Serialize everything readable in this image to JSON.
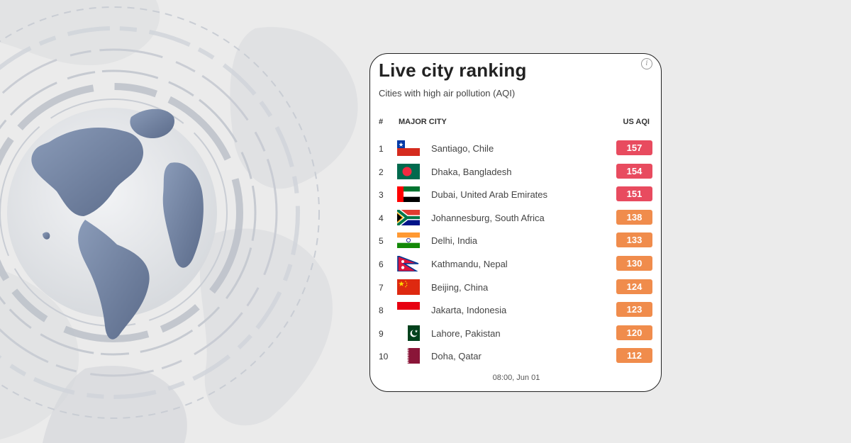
{
  "card": {
    "title": "Live city ranking",
    "subtitle": "Cities with high air pollution (AQI)",
    "info_icon": "info-icon",
    "columns": {
      "rank": "#",
      "city": "MAJOR CITY",
      "aqi": "US AQI"
    },
    "timestamp": "08:00, Jun 01"
  },
  "colors": {
    "aqi_unhealthy": "#e84b5f",
    "aqi_sensitive": "#f08c4c"
  },
  "rows": [
    {
      "rank": "1",
      "city": "Santiago, Chile",
      "aqi": "157",
      "level": "red",
      "flag": "chile"
    },
    {
      "rank": "2",
      "city": "Dhaka, Bangladesh",
      "aqi": "154",
      "level": "red",
      "flag": "bangladesh"
    },
    {
      "rank": "3",
      "city": "Dubai, United Arab Emirates",
      "aqi": "151",
      "level": "red",
      "flag": "uae"
    },
    {
      "rank": "4",
      "city": "Johannesburg, South Africa",
      "aqi": "138",
      "level": "orange",
      "flag": "south-africa"
    },
    {
      "rank": "5",
      "city": "Delhi, India",
      "aqi": "133",
      "level": "orange",
      "flag": "india"
    },
    {
      "rank": "6",
      "city": "Kathmandu, Nepal",
      "aqi": "130",
      "level": "orange",
      "flag": "nepal"
    },
    {
      "rank": "7",
      "city": "Beijing, China",
      "aqi": "124",
      "level": "orange",
      "flag": "china"
    },
    {
      "rank": "8",
      "city": "Jakarta, Indonesia",
      "aqi": "123",
      "level": "orange",
      "flag": "indonesia"
    },
    {
      "rank": "9",
      "city": "Lahore, Pakistan",
      "aqi": "120",
      "level": "orange",
      "flag": "pakistan"
    },
    {
      "rank": "10",
      "city": "Doha, Qatar",
      "aqi": "112",
      "level": "orange",
      "flag": "qatar"
    }
  ]
}
